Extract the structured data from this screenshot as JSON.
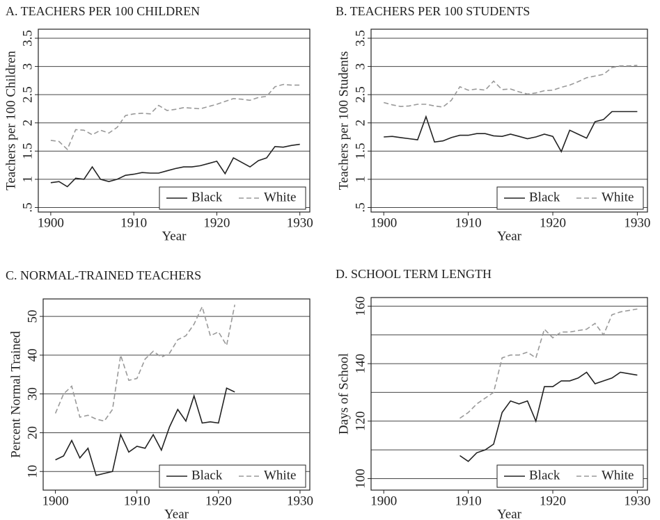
{
  "chart_data": [
    {
      "type": "line",
      "title": "A. TEACHERS PER 100 CHILDREN",
      "xlabel": "Year",
      "ylabel": "Teachers per 100 Children",
      "x": [
        1900,
        1901,
        1902,
        1903,
        1904,
        1905,
        1906,
        1907,
        1908,
        1909,
        1910,
        1911,
        1912,
        1913,
        1914,
        1915,
        1916,
        1917,
        1918,
        1919,
        1920,
        1921,
        1922,
        1923,
        1924,
        1925,
        1926,
        1927,
        1928,
        1929,
        1930
      ],
      "series": [
        {
          "name": "Black",
          "color": "#222222",
          "dash": false,
          "values": [
            0.94,
            0.96,
            0.87,
            1.02,
            1.0,
            1.22,
            1.0,
            0.96,
            1.0,
            1.07,
            1.09,
            1.12,
            1.11,
            1.11,
            1.15,
            1.19,
            1.22,
            1.22,
            1.24,
            1.28,
            1.32,
            1.1,
            1.38,
            1.3,
            1.22,
            1.33,
            1.38,
            1.58,
            1.57,
            1.6,
            1.62
          ]
        },
        {
          "name": "White",
          "color": "#999999",
          "dash": true,
          "values": [
            1.69,
            1.67,
            1.53,
            1.88,
            1.87,
            1.79,
            1.87,
            1.82,
            1.92,
            2.13,
            2.16,
            2.17,
            2.16,
            2.31,
            2.22,
            2.24,
            2.27,
            2.26,
            2.25,
            2.29,
            2.33,
            2.38,
            2.43,
            2.42,
            2.4,
            2.45,
            2.47,
            2.64,
            2.68,
            2.67,
            2.67
          ]
        }
      ],
      "xlim": [
        1898.5,
        1931.2
      ],
      "xticks": [
        1900,
        1910,
        1920,
        1930
      ],
      "ylim": [
        0.42,
        3.66
      ],
      "yticks": [
        {
          "value": 0.5,
          "label": ".5"
        },
        1,
        1.5,
        2,
        2.5,
        3,
        3.5
      ],
      "grid": true,
      "legend": "lower right"
    },
    {
      "type": "line",
      "title": "B. TEACHERS PER 100 STUDENTS",
      "xlabel": "Year",
      "ylabel": "Teachers per 100 Students",
      "x": [
        1900,
        1901,
        1902,
        1903,
        1904,
        1905,
        1906,
        1907,
        1908,
        1909,
        1910,
        1911,
        1912,
        1913,
        1914,
        1915,
        1916,
        1917,
        1918,
        1919,
        1920,
        1921,
        1922,
        1923,
        1924,
        1925,
        1926,
        1927,
        1928,
        1929,
        1930
      ],
      "series": [
        {
          "name": "Black",
          "color": "#222222",
          "dash": false,
          "values": [
            1.75,
            1.76,
            1.74,
            1.72,
            1.7,
            2.11,
            1.66,
            1.68,
            1.74,
            1.78,
            1.78,
            1.81,
            1.81,
            1.77,
            1.76,
            1.8,
            1.76,
            1.72,
            1.75,
            1.8,
            1.76,
            1.49,
            1.87,
            1.8,
            1.73,
            2.02,
            2.06,
            2.2,
            2.2,
            2.2,
            2.2
          ]
        },
        {
          "name": "White",
          "color": "#999999",
          "dash": true,
          "values": [
            2.36,
            2.32,
            2.29,
            2.3,
            2.33,
            2.33,
            2.3,
            2.28,
            2.4,
            2.64,
            2.58,
            2.6,
            2.58,
            2.74,
            2.59,
            2.6,
            2.55,
            2.51,
            2.53,
            2.57,
            2.58,
            2.63,
            2.67,
            2.73,
            2.8,
            2.83,
            2.86,
            2.98,
            3.01,
            3.01,
            3.02
          ]
        }
      ],
      "xlim": [
        1898.5,
        1931.2
      ],
      "xticks": [
        1900,
        1910,
        1920,
        1930
      ],
      "ylim": [
        0.42,
        3.66
      ],
      "yticks": [
        {
          "value": 0.5,
          "label": ".5"
        },
        1,
        1.5,
        2,
        2.5,
        3,
        3.5
      ],
      "grid": true,
      "legend": "lower right"
    },
    {
      "type": "line",
      "title": "C. NORMAL-TRAINED TEACHERS",
      "xlabel": "Year",
      "ylabel": "Percent Normal Trained",
      "x": [
        1900,
        1901,
        1902,
        1903,
        1904,
        1905,
        1906,
        1907,
        1908,
        1909,
        1910,
        1911,
        1912,
        1913,
        1914,
        1915,
        1916,
        1917,
        1918,
        1919,
        1920,
        1921,
        1922
      ],
      "series": [
        {
          "name": "Black",
          "color": "#222222",
          "dash": false,
          "values": [
            13,
            14,
            18,
            13.5,
            16,
            9,
            9.5,
            10,
            19.5,
            15,
            16.5,
            16,
            19.5,
            15.5,
            21.5,
            26,
            23,
            29.5,
            22.5,
            22.8,
            22.5,
            31.5,
            30.5
          ]
        },
        {
          "name": "White",
          "color": "#999999",
          "dash": true,
          "values": [
            25,
            30,
            32,
            24,
            24.5,
            23.5,
            23,
            26,
            40,
            33.5,
            34,
            39,
            41,
            39.5,
            40.5,
            44,
            45,
            48,
            52.5,
            45,
            46,
            42.5,
            53
          ]
        }
      ],
      "xlim": [
        1898.5,
        1931.2
      ],
      "xticks": [
        1900,
        1910,
        1920,
        1930
      ],
      "ylim": [
        5.2,
        54.5
      ],
      "yticks": [
        10,
        20,
        30,
        40,
        50
      ],
      "grid": true,
      "legend": "lower right"
    },
    {
      "type": "line",
      "title": "D. SCHOOL TERM LENGTH",
      "xlabel": "Year",
      "ylabel": "Days of School",
      "x": [
        1909,
        1910,
        1911,
        1912,
        1913,
        1914,
        1915,
        1916,
        1917,
        1918,
        1919,
        1920,
        1921,
        1922,
        1923,
        1924,
        1925,
        1926,
        1927,
        1928,
        1929,
        1930
      ],
      "series": [
        {
          "name": "Black",
          "color": "#222222",
          "dash": false,
          "values": [
            108,
            106,
            109,
            110,
            112,
            123,
            127,
            126,
            127,
            120,
            132,
            132,
            134,
            134,
            135,
            137,
            133,
            134,
            135,
            137,
            136.5,
            136
          ]
        },
        {
          "name": "White",
          "color": "#999999",
          "dash": true,
          "values": [
            121,
            123,
            126,
            128,
            130,
            142,
            143,
            143,
            144,
            142,
            152,
            149,
            151,
            151,
            151.5,
            152,
            154,
            150,
            157,
            158,
            158.5,
            159
          ]
        }
      ],
      "xlim": [
        1898.5,
        1931.2
      ],
      "xticks": [
        1900,
        1910,
        1920,
        1930
      ],
      "ylim": [
        96,
        163
      ],
      "yticks": [
        100,
        120,
        140,
        160
      ],
      "minor_yticks": [
        110,
        130,
        150
      ],
      "grid": true,
      "legend": "lower right"
    }
  ]
}
